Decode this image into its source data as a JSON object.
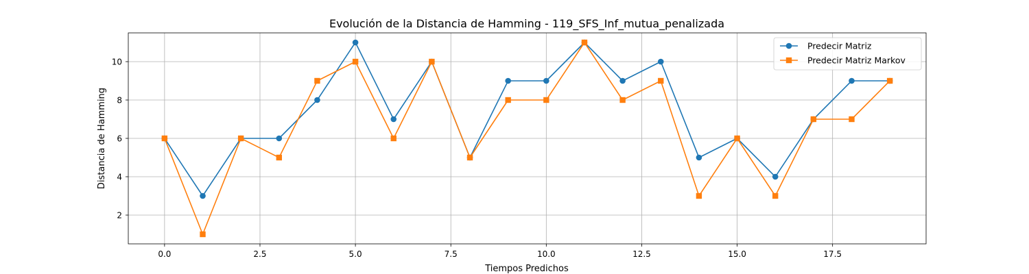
{
  "chart_data": {
    "type": "line",
    "title": "Evolución de la Distancia de Hamming - 119_SFS_Inf_mutua_penalizada",
    "xlabel": "Tiempos Predichos",
    "ylabel": "Distancia de Hamming",
    "x": [
      0,
      1,
      2,
      3,
      4,
      5,
      6,
      7,
      8,
      9,
      10,
      11,
      12,
      13,
      14,
      15,
      16,
      17,
      18,
      19
    ],
    "xlim": [
      -0.95,
      19.95
    ],
    "ylim": [
      0.5,
      11.5
    ],
    "xticks": [
      0.0,
      2.5,
      5.0,
      7.5,
      10.0,
      12.5,
      15.0,
      17.5
    ],
    "xtick_labels": [
      "0.0",
      "2.5",
      "5.0",
      "7.5",
      "10.0",
      "12.5",
      "15.0",
      "17.5"
    ],
    "yticks": [
      2,
      4,
      6,
      8,
      10
    ],
    "ytick_labels": [
      "2",
      "4",
      "6",
      "8",
      "10"
    ],
    "grid": true,
    "legend_position": "top-right",
    "series": [
      {
        "name": "Predecir Matriz",
        "color": "#1f77b4",
        "marker": "circle",
        "values": [
          6,
          3,
          6,
          6,
          8,
          11,
          7,
          10,
          5,
          9,
          9,
          11,
          9,
          10,
          5,
          6,
          4,
          7,
          9,
          9
        ]
      },
      {
        "name": "Predecir Matriz Markov",
        "color": "#ff7f0e",
        "marker": "square",
        "values": [
          6,
          1,
          6,
          5,
          9,
          10,
          6,
          10,
          5,
          8,
          8,
          11,
          8,
          9,
          3,
          6,
          3,
          7,
          7,
          9
        ]
      }
    ]
  }
}
